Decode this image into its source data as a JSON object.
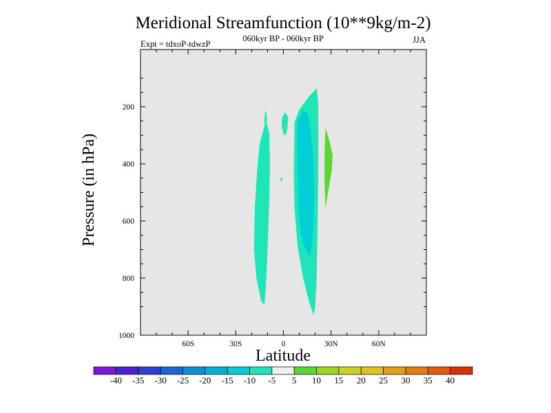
{
  "chart_data": {
    "type": "contour",
    "title": "Meridional Streamfunction (10**9kg/m-2)",
    "subtitle_center": "060kyr BP - 060kyr BP",
    "subtitle_left": "Expt = tdxoP-tdwzP",
    "subtitle_right": "JJA",
    "xlabel": "Latitude",
    "ylabel": "Pressure (in hPa)",
    "xlim": [
      -90,
      90
    ],
    "ylim": [
      1000,
      0
    ],
    "y_inverted": true,
    "x_ticks": [
      {
        "value": -60,
        "label": "60S"
      },
      {
        "value": -30,
        "label": "30S"
      },
      {
        "value": 0,
        "label": "0"
      },
      {
        "value": 30,
        "label": "30N"
      },
      {
        "value": 60,
        "label": "60N"
      }
    ],
    "y_ticks": [
      {
        "value": 200,
        "label": "200"
      },
      {
        "value": 400,
        "label": "400"
      },
      {
        "value": 600,
        "label": "600"
      },
      {
        "value": 800,
        "label": "800"
      },
      {
        "value": 1000,
        "label": "1000"
      }
    ],
    "background_color": "#e6e6e6",
    "colorbar": {
      "levels": [
        -40,
        -35,
        -30,
        -25,
        -20,
        -15,
        -10,
        -5,
        5,
        10,
        15,
        20,
        25,
        30,
        35,
        40
      ],
      "level_labels": [
        "-40",
        "-35",
        "-30",
        "-25",
        "-20",
        "-15",
        "-10",
        "-5",
        "5",
        "10",
        "15",
        "20",
        "25",
        "30",
        "35",
        "40"
      ],
      "colors": [
        "#7a16e0",
        "#4a20d8",
        "#2a40d8",
        "#1a66d8",
        "#0b8fd6",
        "#00b2d6",
        "#00cfd6",
        "#1ee6b8",
        "#f0f0f0",
        "#5ad830",
        "#9ed61e",
        "#c8d41a",
        "#e0c21a",
        "#e2a012",
        "#e27c0e",
        "#e25a0a",
        "#dc3008"
      ]
    },
    "regions": [
      {
        "range": [
          -10,
          -5
        ],
        "color": "#1ee6b8",
        "outline": [
          [
            -13,
            290
          ],
          [
            -11,
            250
          ],
          [
            -9,
            290
          ],
          [
            -8.5,
            400
          ],
          [
            -9,
            540
          ],
          [
            -10,
            700
          ],
          [
            -11,
            830
          ],
          [
            -12,
            895
          ],
          [
            -14,
            880
          ],
          [
            -17,
            800
          ],
          [
            -18.5,
            700
          ],
          [
            -18,
            550
          ],
          [
            -16.5,
            420
          ],
          [
            -15,
            330
          ]
        ]
      },
      {
        "range": [
          -10,
          -5
        ],
        "color": "#1ee6b8",
        "outline": [
          [
            -12,
            250
          ],
          [
            -11.5,
            215
          ],
          [
            -10.5,
            225
          ],
          [
            -10.5,
            265
          ],
          [
            -11.5,
            280
          ]
        ]
      },
      {
        "range": [
          -10,
          -5
        ],
        "color": "#1ee6b8",
        "outline": [
          [
            -1,
            240
          ],
          [
            1,
            220
          ],
          [
            3,
            235
          ],
          [
            2.5,
            275
          ],
          [
            1.5,
            300
          ],
          [
            0,
            295
          ],
          [
            -1,
            270
          ]
        ]
      },
      {
        "range": [
          -10,
          -5
        ],
        "color": "#1ee6b8",
        "outline": [
          [
            -2,
            452
          ],
          [
            -1,
            447
          ],
          [
            -0.5,
            455
          ],
          [
            -1.5,
            462
          ]
        ]
      },
      {
        "range": [
          -10,
          -5
        ],
        "color": "#1ee6b8",
        "outline": [
          [
            7,
            255
          ],
          [
            10,
            210
          ],
          [
            16,
            165
          ],
          [
            21,
            135
          ],
          [
            22,
            200
          ],
          [
            22,
            400
          ],
          [
            21.5,
            600
          ],
          [
            21,
            790
          ],
          [
            20,
            900
          ],
          [
            19,
            930
          ],
          [
            16,
            880
          ],
          [
            12,
            790
          ],
          [
            9,
            690
          ],
          [
            7,
            560
          ],
          [
            6.5,
            430
          ]
        ]
      },
      {
        "range": [
          -15,
          -10
        ],
        "color": "#00cfd6",
        "outline": [
          [
            9,
            250
          ],
          [
            12,
            215
          ],
          [
            15,
            218
          ],
          [
            17,
            270
          ],
          [
            19,
            380
          ],
          [
            19.5,
            500
          ],
          [
            19,
            600
          ],
          [
            18,
            680
          ],
          [
            17,
            720
          ],
          [
            15,
            710
          ],
          [
            13,
            690
          ],
          [
            11,
            640
          ],
          [
            9.5,
            560
          ],
          [
            9,
            430
          ],
          [
            8.5,
            320
          ]
        ]
      },
      {
        "range": [
          5,
          10
        ],
        "color": "#5ad830",
        "outline": [
          [
            26.5,
            275
          ],
          [
            29,
            320
          ],
          [
            31,
            370
          ],
          [
            30.5,
            420
          ],
          [
            29,
            470
          ],
          [
            27.5,
            520
          ],
          [
            26.5,
            555
          ],
          [
            25.8,
            450
          ],
          [
            26,
            350
          ]
        ]
      }
    ]
  }
}
